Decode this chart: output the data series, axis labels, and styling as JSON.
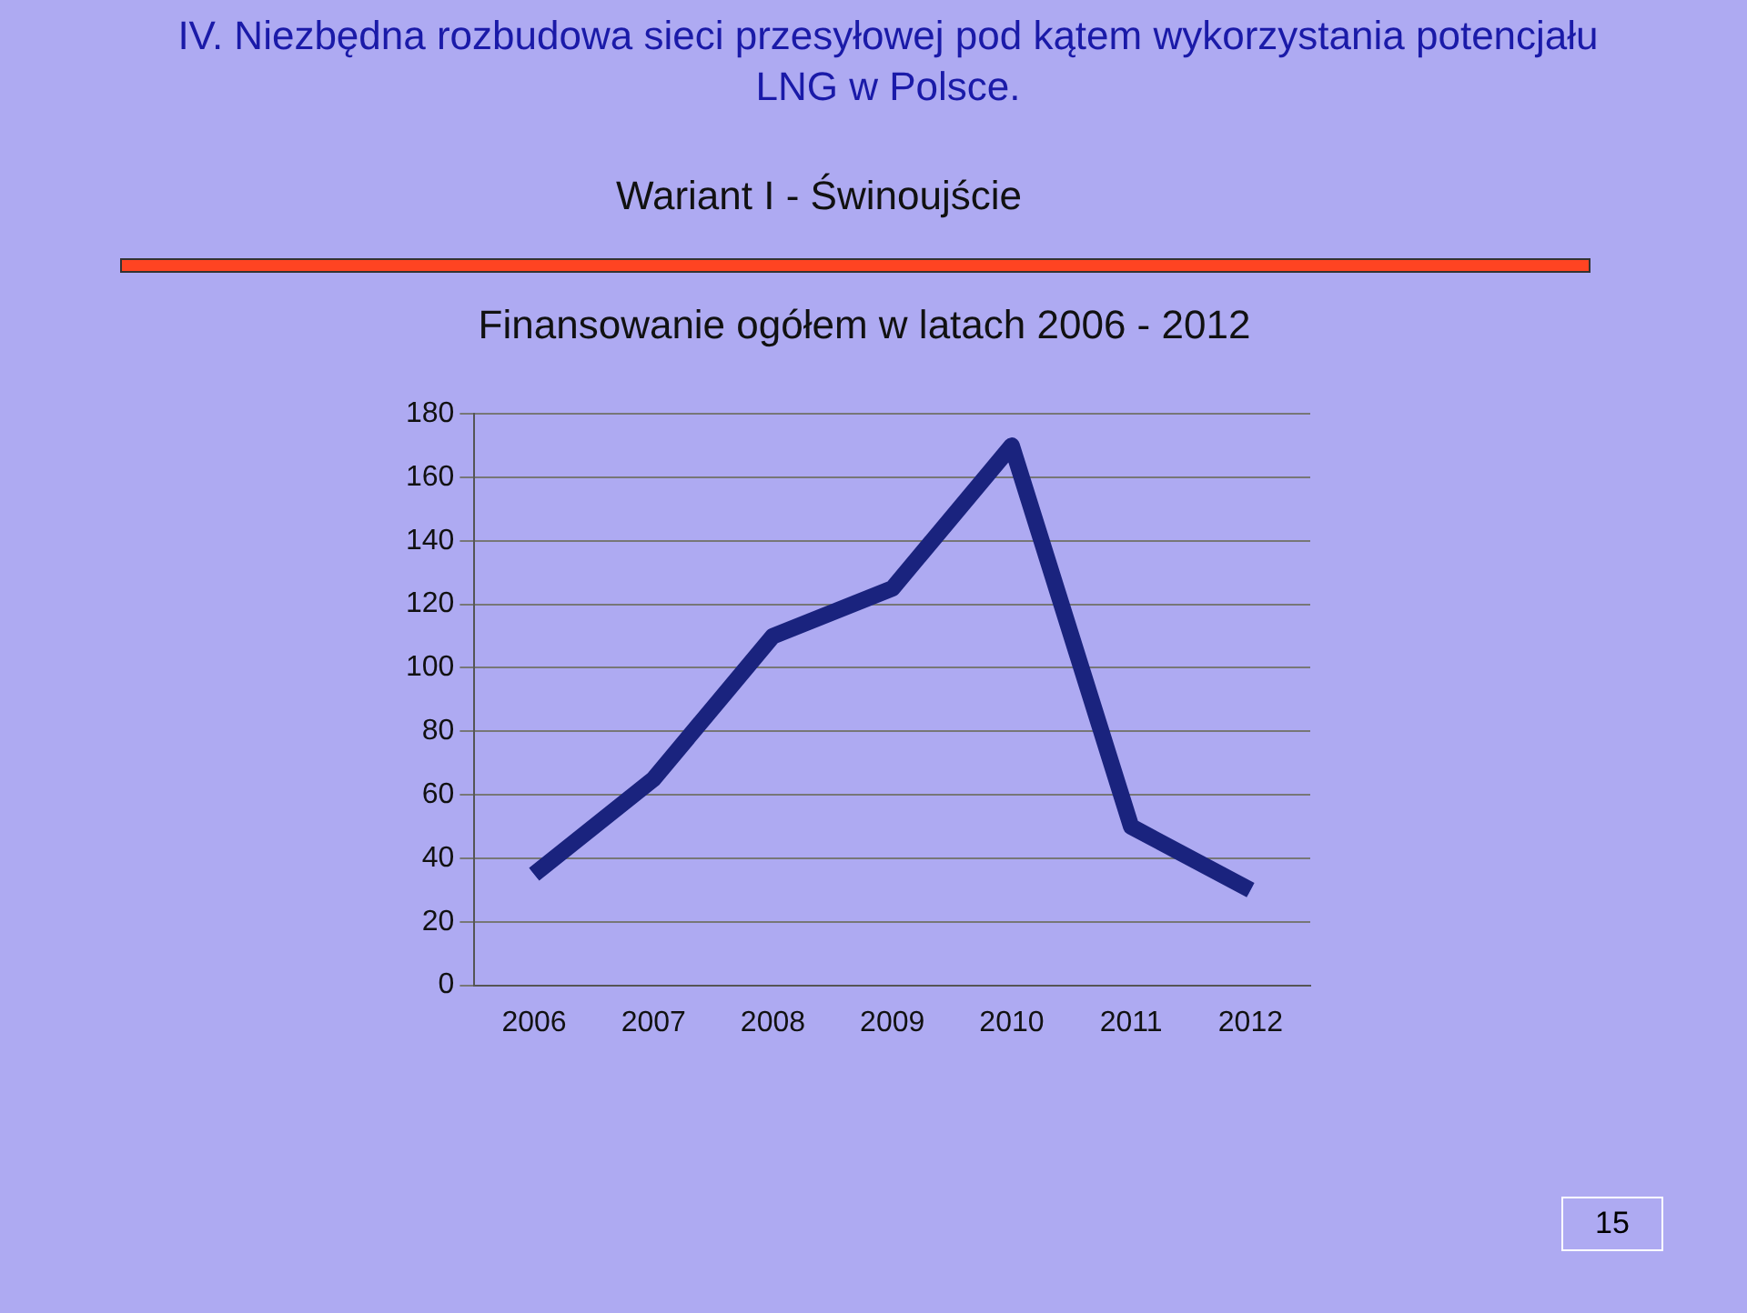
{
  "chart_data": {
    "type": "line",
    "title": "IV. Niezbędna rozbudowa sieci przesyłowej pod kątem wykorzystania potencjału LNG w Polsce.",
    "subtitle": "Wariant I - Świnoujście",
    "ylabel": null,
    "annotations": [
      "Finansowanie ogółem w latach 2006 - 2012",
      "15"
    ],
    "categories": [
      "2006",
      "2007",
      "2008",
      "2009",
      "2010",
      "2011",
      "2012"
    ],
    "series": [
      {
        "color": "#4a63e6",
        "values": [
          35,
          65,
          110,
          125,
          170,
          50,
          30
        ]
      }
    ],
    "ylim": [
      0,
      180
    ],
    "yticks": [
      0,
      20,
      40,
      60,
      80,
      100,
      120,
      140,
      160,
      180
    ],
    "grid": "y",
    "legend": false,
    "marker": "none",
    "line_style": "solid"
  }
}
